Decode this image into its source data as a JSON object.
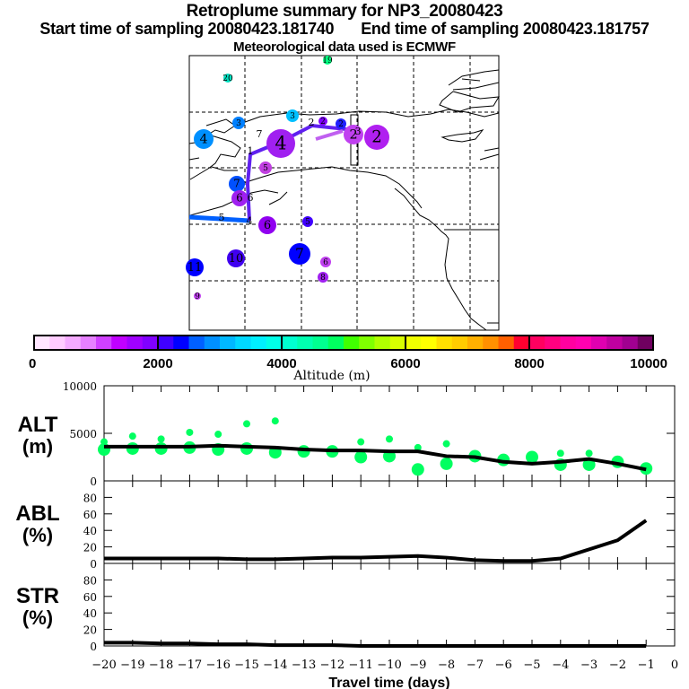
{
  "header": {
    "title": "Retroplume summary for NP3_20080423",
    "start_label": "Start time of sampling 20080423.181740",
    "end_label": "End time of sampling 20080423.181757",
    "met_label": "Meteorological data used is ECMWF"
  },
  "chart_data": [
    {
      "type": "map",
      "name": "retroplume-map",
      "description": "Map of North Pacific / Alaska / west coast of North America with retroplume cluster positions; labels are days before release, circle size ~ fraction, color ~ altitude",
      "clusters": [
        {
          "label": "20",
          "color": "#00e0c0",
          "lon_rank": 1,
          "size": "small"
        },
        {
          "label": "19",
          "color": "#00ff80",
          "size": "small"
        },
        {
          "label": "3",
          "color": "#0080ff",
          "size": "small"
        },
        {
          "label": "3",
          "color": "#00c0ff",
          "size": "small"
        },
        {
          "label": "4",
          "color": "#0090ff",
          "size": "medium"
        },
        {
          "label": "4",
          "color": "#a020f0",
          "size": "large"
        },
        {
          "label": "2",
          "color": "#8000ff",
          "size": "small"
        },
        {
          "label": "2",
          "color": "#2020ff",
          "size": "small"
        },
        {
          "label": "2",
          "color": "#c040f0",
          "size": "large"
        },
        {
          "label": "2",
          "color": "#b020f0",
          "size": "large"
        },
        {
          "label": "5",
          "color": "#c040e0",
          "size": "small"
        },
        {
          "label": "7",
          "color": "#0050ff",
          "size": "medium"
        },
        {
          "label": "6",
          "color": "#a020f0",
          "size": "medium"
        },
        {
          "label": "6",
          "color": "#9000f0",
          "size": "medium"
        },
        {
          "label": "5",
          "color": "#4000ff",
          "size": "small"
        },
        {
          "label": "7",
          "color": "#0000ff",
          "size": "large"
        },
        {
          "label": "10",
          "color": "#4000f0",
          "size": "medium"
        },
        {
          "label": "11",
          "color": "#0000ff",
          "size": "medium"
        },
        {
          "label": "6",
          "color": "#c040f0",
          "size": "small"
        },
        {
          "label": "8",
          "color": "#a020f0",
          "size": "small"
        },
        {
          "label": "9",
          "color": "#c040f0",
          "size": "small"
        }
      ],
      "track_labels": [
        "1",
        "2",
        "3",
        "4",
        "5",
        "6",
        "7"
      ]
    },
    {
      "type": "colorbar",
      "name": "altitude-colorbar",
      "xlabel": "Altitude (m)",
      "range": [
        0,
        10000
      ],
      "tick_labels": [
        "0",
        "2000",
        "4000",
        "6000",
        "8000",
        "10000"
      ],
      "colors": [
        "#ffe6ff",
        "#ffccff",
        "#f4aaff",
        "#e680ff",
        "#d040ff",
        "#c000ff",
        "#a000ff",
        "#8000ff",
        "#4000ff",
        "#0000ff",
        "#0060ff",
        "#0090ff",
        "#00b8ff",
        "#00d8ff",
        "#00f0ff",
        "#00ffe8",
        "#00ffd0",
        "#00ffb0",
        "#00ff90",
        "#00ff60",
        "#40ff00",
        "#80ff00",
        "#b0ff00",
        "#d8ff00",
        "#f0ff00",
        "#ffff00",
        "#ffe000",
        "#ffcc00",
        "#ffb000",
        "#ff9000",
        "#ff6000",
        "#ff0030",
        "#ff0060",
        "#ff0080",
        "#ff00a0",
        "#ff00b0",
        "#e000b0",
        "#c000a0",
        "#a00090",
        "#700060"
      ]
    },
    {
      "type": "line",
      "name": "alt-panel",
      "ylabel": "ALT\n(m)",
      "ylabel_line1": "ALT",
      "ylabel_line2": "(m)",
      "ylim": [
        0,
        10000
      ],
      "ytick_labels": [
        "0",
        "5000",
        "10000"
      ],
      "x": [
        -20,
        -19,
        -18,
        -17,
        -16,
        -15,
        -14,
        -13,
        -12,
        -11,
        -10,
        -9,
        -8,
        -7,
        -6,
        -5,
        -4,
        -3,
        -2,
        -1
      ],
      "line": [
        3600,
        3600,
        3600,
        3600,
        3700,
        3600,
        3500,
        3300,
        3200,
        3200,
        3100,
        3100,
        2600,
        2500,
        2000,
        1800,
        2000,
        2300,
        1800,
        1200
      ],
      "scatter": [
        {
          "x": -20,
          "y": [
            4100,
            3300
          ]
        },
        {
          "x": -19,
          "y": [
            4700,
            3400
          ]
        },
        {
          "x": -18,
          "y": [
            4400,
            3400
          ]
        },
        {
          "x": -17,
          "y": [
            5100,
            3500
          ]
        },
        {
          "x": -16,
          "y": [
            4900,
            3300
          ]
        },
        {
          "x": -15,
          "y": [
            6000,
            3400
          ]
        },
        {
          "x": -14,
          "y": [
            6300,
            3000
          ]
        },
        {
          "x": -13,
          "y": [
            3100
          ]
        },
        {
          "x": -12,
          "y": [
            3100
          ]
        },
        {
          "x": -11,
          "y": [
            4100,
            2500
          ]
        },
        {
          "x": -10,
          "y": [
            4400,
            2600
          ]
        },
        {
          "x": -9,
          "y": [
            3500,
            1200
          ]
        },
        {
          "x": -8,
          "y": [
            3900,
            1800
          ]
        },
        {
          "x": -7,
          "y": [
            2600
          ]
        },
        {
          "x": -6,
          "y": [
            2200
          ]
        },
        {
          "x": -5,
          "y": [
            2500
          ]
        },
        {
          "x": -4,
          "y": [
            2900,
            1700
          ]
        },
        {
          "x": -3,
          "y": [
            2900,
            1700
          ]
        },
        {
          "x": -2,
          "y": [
            2000
          ]
        },
        {
          "x": -1,
          "y": [
            1300
          ]
        }
      ],
      "scatter_color": "#00ff60"
    },
    {
      "type": "line",
      "name": "abl-panel",
      "ylabel_line1": "ABL",
      "ylabel_line2": "(%)",
      "ylim": [
        0,
        100
      ],
      "ytick_labels": [
        "0",
        "20",
        "40",
        "60",
        "80"
      ],
      "x": [
        -20,
        -19,
        -18,
        -17,
        -16,
        -15,
        -14,
        -13,
        -12,
        -11,
        -10,
        -9,
        -8,
        -7,
        -6,
        -5,
        -4,
        -3,
        -2,
        -1
      ],
      "values": [
        6,
        6,
        6,
        6,
        6,
        5,
        5,
        6,
        7,
        7,
        8,
        9,
        7,
        4,
        3,
        3,
        6,
        17,
        28,
        52
      ]
    },
    {
      "type": "line",
      "name": "str-panel",
      "ylabel_line1": "STR",
      "ylabel_line2": "(%)",
      "ylim": [
        0,
        100
      ],
      "ytick_labels": [
        "0",
        "20",
        "40",
        "60",
        "80"
      ],
      "x": [
        -20,
        -19,
        -18,
        -17,
        -16,
        -15,
        -14,
        -13,
        -12,
        -11,
        -10,
        -9,
        -8,
        -7,
        -6,
        -5,
        -4,
        -3,
        -2,
        -1
      ],
      "values": [
        4,
        4,
        3,
        3,
        2,
        2,
        1,
        1,
        1,
        0,
        0,
        0,
        0,
        0,
        0,
        0,
        0,
        0,
        0,
        0
      ],
      "xlabel": "Travel time (days)",
      "xtick_labels": [
        "-20",
        "-19",
        "-18",
        "-17",
        "-16",
        "-15",
        "-14",
        "-13",
        "-12",
        "-11",
        "-10",
        "-9",
        "-8",
        "-7",
        "-6",
        "-5",
        "-4",
        "-3",
        "-2",
        "-1",
        "0"
      ],
      "xlim": [
        -20,
        0
      ]
    }
  ]
}
